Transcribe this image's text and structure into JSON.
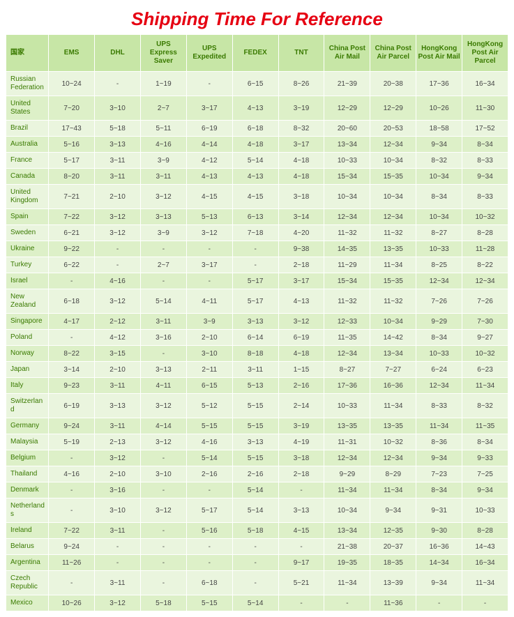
{
  "title": "Shipping Time For Reference",
  "columns": [
    "国家",
    "EMS",
    "DHL",
    "UPS Express Saver",
    "UPS Expedited",
    "FEDEX",
    "TNT",
    "China Post Air Mail",
    "China Post Air Parcel",
    "HongKong Post Air Mail",
    "HongKong Post Air Parcel"
  ],
  "rows": [
    [
      "Russian Federation",
      "10~24",
      "-",
      "1~19",
      "-",
      "6~15",
      "8~26",
      "21~39",
      "20~38",
      "17~36",
      "16~34"
    ],
    [
      "United States",
      "7~20",
      "3~10",
      "2~7",
      "3~17",
      "4~13",
      "3~19",
      "12~29",
      "12~29",
      "10~26",
      "11~30"
    ],
    [
      "Brazil",
      "17~43",
      "5~18",
      "5~11",
      "6~19",
      "6~18",
      "8~32",
      "20~60",
      "20~53",
      "18~58",
      "17~52"
    ],
    [
      "Australia",
      "5~16",
      "3~13",
      "4~16",
      "4~14",
      "4~18",
      "3~17",
      "13~34",
      "12~34",
      "9~34",
      "8~34"
    ],
    [
      "France",
      "5~17",
      "3~11",
      "3~9",
      "4~12",
      "5~14",
      "4~18",
      "10~33",
      "10~34",
      "8~32",
      "8~33"
    ],
    [
      "Canada",
      "8~20",
      "3~11",
      "3~11",
      "4~13",
      "4~13",
      "4~18",
      "15~34",
      "15~35",
      "10~34",
      "9~34"
    ],
    [
      "United Kingdom",
      "7~21",
      "2~10",
      "3~12",
      "4~15",
      "4~15",
      "3~18",
      "10~34",
      "10~34",
      "8~34",
      "8~33"
    ],
    [
      "Spain",
      "7~22",
      "3~12",
      "3~13",
      "5~13",
      "6~13",
      "3~14",
      "12~34",
      "12~34",
      "10~34",
      "10~32"
    ],
    [
      "Sweden",
      "6~21",
      "3~12",
      "3~9",
      "3~12",
      "7~18",
      "4~20",
      "11~32",
      "11~32",
      "8~27",
      "8~28"
    ],
    [
      "Ukraine",
      "9~22",
      "-",
      "-",
      "-",
      "-",
      "9~38",
      "14~35",
      "13~35",
      "10~33",
      "11~28"
    ],
    [
      "Turkey",
      "6~22",
      "-",
      "2~7",
      "3~17",
      "-",
      "2~18",
      "11~29",
      "11~34",
      "8~25",
      "8~22"
    ],
    [
      "Israel",
      "-",
      "4~16",
      "-",
      "-",
      "5~17",
      "3~17",
      "15~34",
      "15~35",
      "12~34",
      "12~34"
    ],
    [
      "New Zealand",
      "6~18",
      "3~12",
      "5~14",
      "4~11",
      "5~17",
      "4~13",
      "11~32",
      "11~32",
      "7~26",
      "7~26"
    ],
    [
      "Singapore",
      "4~17",
      "2~12",
      "3~11",
      "3~9",
      "3~13",
      "3~12",
      "12~33",
      "10~34",
      "9~29",
      "7~30"
    ],
    [
      "Poland",
      "-",
      "4~12",
      "3~16",
      "2~10",
      "6~14",
      "6~19",
      "11~35",
      "14~42",
      "8~34",
      "9~27"
    ],
    [
      "Norway",
      "8~22",
      "3~15",
      "-",
      "3~10",
      "8~18",
      "4~18",
      "12~34",
      "13~34",
      "10~33",
      "10~32"
    ],
    [
      "Japan",
      "3~14",
      "2~10",
      "3~13",
      "2~11",
      "3~11",
      "1~15",
      "8~27",
      "7~27",
      "6~24",
      "6~23"
    ],
    [
      "Italy",
      "9~23",
      "3~11",
      "4~11",
      "6~15",
      "5~13",
      "2~16",
      "17~36",
      "16~36",
      "12~34",
      "11~34"
    ],
    [
      "Switzerland",
      "6~19",
      "3~13",
      "3~12",
      "5~12",
      "5~15",
      "2~14",
      "10~33",
      "11~34",
      "8~33",
      "8~32"
    ],
    [
      "Germany",
      "9~24",
      "3~11",
      "4~14",
      "5~15",
      "5~15",
      "3~19",
      "13~35",
      "13~35",
      "11~34",
      "11~35"
    ],
    [
      "Malaysia",
      "5~19",
      "2~13",
      "3~12",
      "4~16",
      "3~13",
      "4~19",
      "11~31",
      "10~32",
      "8~36",
      "8~34"
    ],
    [
      "Belgium",
      "-",
      "3~12",
      "-",
      "5~14",
      "5~15",
      "3~18",
      "12~34",
      "12~34",
      "9~34",
      "9~33"
    ],
    [
      "Thailand",
      "4~16",
      "2~10",
      "3~10",
      "2~16",
      "2~16",
      "2~18",
      "9~29",
      "8~29",
      "7~23",
      "7~25"
    ],
    [
      "Denmark",
      "-",
      "3~16",
      "-",
      "-",
      "5~14",
      "-",
      "11~34",
      "11~34",
      "8~34",
      "9~34"
    ],
    [
      "Netherlands",
      "-",
      "3~10",
      "3~12",
      "5~17",
      "5~14",
      "3~13",
      "10~34",
      "9~34",
      "9~31",
      "10~33"
    ],
    [
      "Ireland",
      "7~22",
      "3~11",
      "-",
      "5~16",
      "5~18",
      "4~15",
      "13~34",
      "12~35",
      "9~30",
      "8~28"
    ],
    [
      "Belarus",
      "9~24",
      "-",
      "-",
      "-",
      "-",
      "-",
      "21~38",
      "20~37",
      "16~36",
      "14~43"
    ],
    [
      "Argentina",
      "11~26",
      "-",
      "-",
      "-",
      "-",
      "9~17",
      "19~35",
      "18~35",
      "14~34",
      "16~34"
    ],
    [
      "Czech Republic",
      "-",
      "3~11",
      "-",
      "6~18",
      "-",
      "5~21",
      "11~34",
      "13~39",
      "9~34",
      "11~34"
    ],
    [
      "Mexico",
      "10~26",
      "3~12",
      "5~18",
      "5~15",
      "5~14",
      "-",
      "-",
      "11~36",
      "-",
      "-"
    ]
  ],
  "styling": {
    "title_color": "#e60012",
    "title_fontsize": 26,
    "header_bg": "#c7e6a6",
    "header_color": "#3a7a00",
    "row_odd_bg": "#eaf5de",
    "row_even_bg": "#ddf0c8",
    "border_color": "#ffffff",
    "cell_fontsize": 10,
    "country_color": "#3a7a00",
    "value_color": "#444444",
    "column_widths_pct": [
      8.5,
      9.15,
      9.15,
      9.15,
      9.15,
      9.15,
      9.15,
      9.15,
      9.15,
      9.15,
      9.15
    ]
  }
}
